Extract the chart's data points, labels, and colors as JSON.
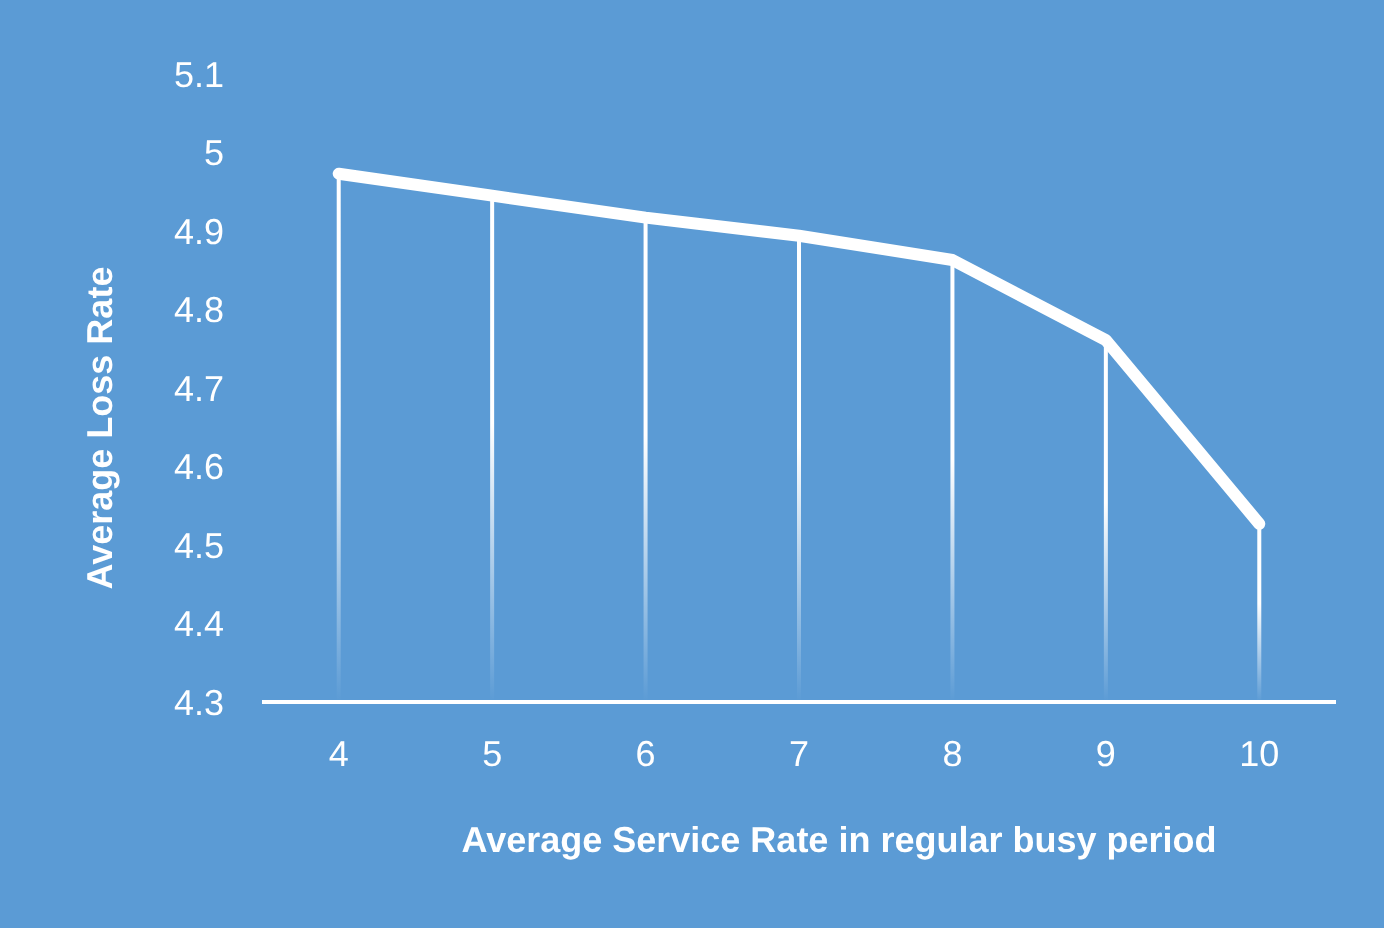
{
  "chart_data": {
    "type": "line",
    "xlabel": "Average Service Rate in regular busy period",
    "ylabel": "Average Loss Rate",
    "categories": [
      "4",
      "5",
      "6",
      "7",
      "8",
      "9",
      "10"
    ],
    "series": [
      {
        "type": "bar",
        "color": "#ffffff",
        "values": [
          4.973,
          4.945,
          4.917,
          4.894,
          4.863,
          4.761,
          4.527
        ]
      },
      {
        "color": "#ffffff",
        "values": [
          4.973,
          4.945,
          4.917,
          4.894,
          4.863,
          4.761,
          4.527
        ]
      }
    ],
    "ylim": [
      4.3,
      5.1
    ],
    "yticks": [
      4.3,
      4.4,
      4.5,
      4.6,
      4.7,
      4.8,
      4.9,
      5,
      5.1
    ],
    "grid": false,
    "marker": "none",
    "line_style": "solid"
  }
}
